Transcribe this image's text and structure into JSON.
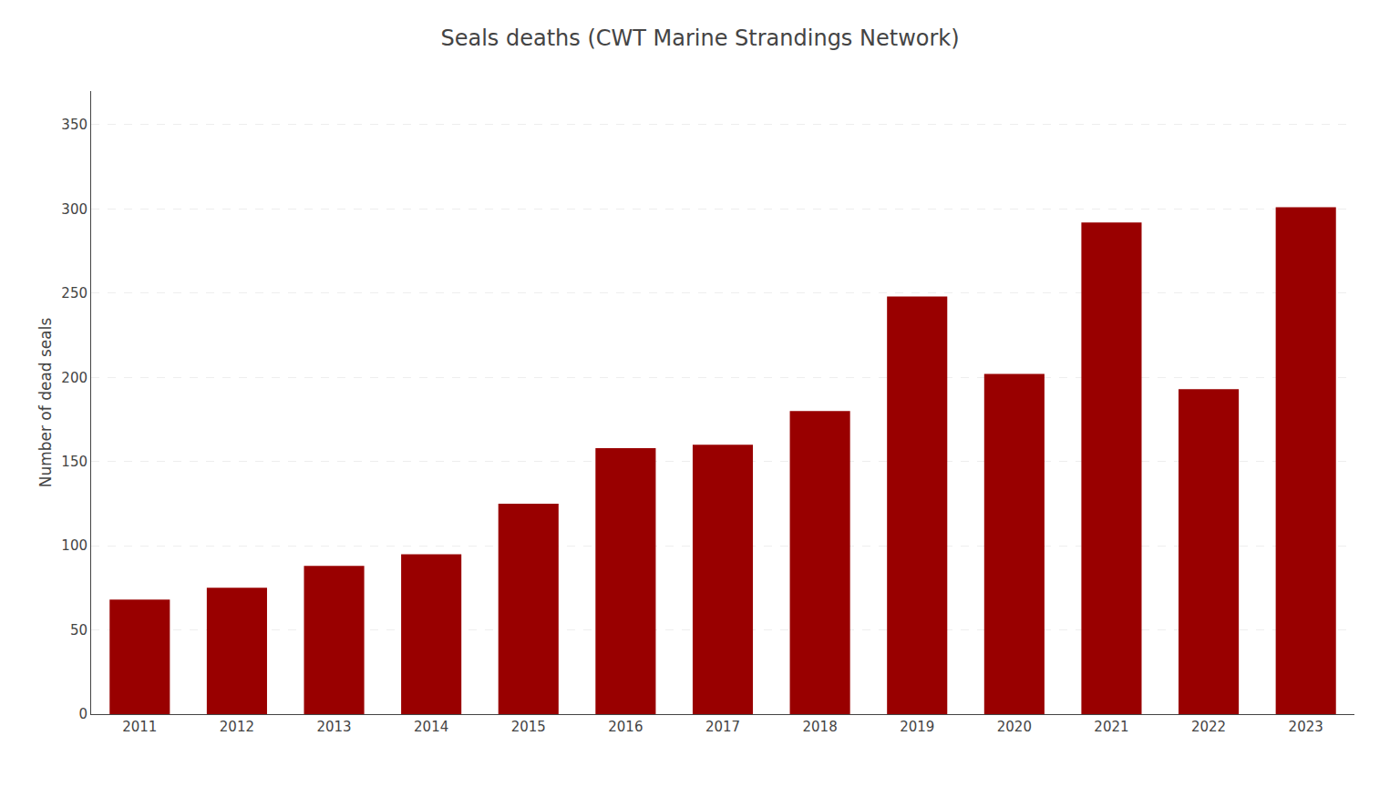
{
  "chart_data": {
    "type": "bar",
    "title": "Seals deaths (CWT Marine Strandings Network)",
    "categories": [
      "2011",
      "2012",
      "2013",
      "2014",
      "2015",
      "2016",
      "2017",
      "2018",
      "2019",
      "2020",
      "2021",
      "2022",
      "2023"
    ],
    "values": [
      68,
      75,
      88,
      95,
      125,
      158,
      160,
      180,
      248,
      202,
      292,
      193,
      301
    ],
    "color": "#990000",
    "ylabel": "Number of dead seals",
    "ylim": [
      0,
      370
    ],
    "yticks": [
      0,
      50,
      100,
      150,
      200,
      250,
      300,
      350
    ],
    "grid": true
  }
}
